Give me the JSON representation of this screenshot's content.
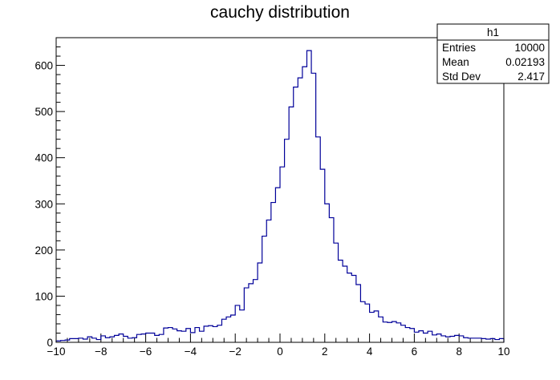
{
  "chart_data": {
    "type": "histogram",
    "title": "cauchy distribution",
    "xlabel": "",
    "ylabel": "",
    "xlim": [
      -10,
      10
    ],
    "ylim": [
      0,
      660
    ],
    "x_ticks": [
      -10,
      -8,
      -6,
      -4,
      -2,
      0,
      2,
      4,
      6,
      8,
      10
    ],
    "y_ticks": [
      0,
      100,
      200,
      300,
      400,
      500,
      600
    ],
    "grid": false,
    "line_color": "#000099",
    "bin_edges_start": -10,
    "bin_width": 0.2,
    "counts": [
      3,
      4,
      5,
      8,
      8,
      9,
      7,
      12,
      9,
      6,
      14,
      10,
      12,
      15,
      18,
      13,
      9,
      10,
      17,
      18,
      20,
      20,
      15,
      17,
      31,
      32,
      29,
      25,
      24,
      30,
      21,
      32,
      24,
      35,
      36,
      34,
      37,
      50,
      55,
      59,
      80,
      70,
      118,
      127,
      136,
      172,
      230,
      265,
      303,
      335,
      380,
      440,
      510,
      553,
      573,
      597,
      632,
      583,
      445,
      375,
      300,
      270,
      215,
      178,
      165,
      150,
      145,
      125,
      88,
      83,
      65,
      68,
      55,
      44,
      43,
      45,
      42,
      37,
      32,
      30,
      22,
      25,
      20,
      24,
      16,
      18,
      14,
      12,
      13,
      15,
      14,
      10,
      9,
      9,
      9,
      8,
      7,
      8,
      6,
      8
    ],
    "stats_box": {
      "title": "h1",
      "rows": [
        {
          "label": "Entries",
          "value": "10000"
        },
        {
          "label": "Mean",
          "value": "0.02193"
        },
        {
          "label": "Std Dev",
          "value": "2.417"
        }
      ]
    }
  }
}
